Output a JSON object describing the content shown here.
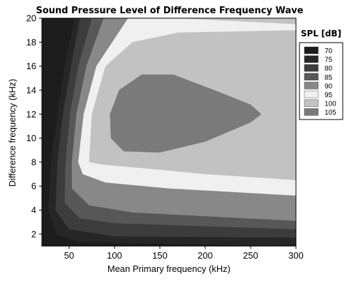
{
  "chart_data": {
    "type": "contour",
    "title": "Sound Pressure Level of Difference Frequency Wave",
    "xlabel": "Mean Primary frequency (kHz)",
    "ylabel": "Difference frequency (kHz)",
    "xlim": [
      20,
      300
    ],
    "ylim": [
      1,
      20
    ],
    "xticks": [
      50,
      100,
      150,
      200,
      250,
      300
    ],
    "yticks": [
      2,
      4,
      6,
      8,
      10,
      12,
      14,
      16,
      18,
      20
    ],
    "grid": false,
    "legend": {
      "title": "SPL [dB]",
      "placement": "right",
      "levels": [
        {
          "label": "70",
          "color": "#1c1c1c"
        },
        {
          "label": "75",
          "color": "#262626"
        },
        {
          "label": "80",
          "color": "#3c3c3c"
        },
        {
          "label": "85",
          "color": "#575757"
        },
        {
          "label": "90",
          "color": "#888888"
        },
        {
          "label": "95",
          "color": "#f0f0f0"
        },
        {
          "label": "100",
          "color": "#c2c2c2"
        },
        {
          "label": "105",
          "color": "#7a7a7a"
        }
      ]
    },
    "regions": [
      {
        "level": "70",
        "color": "#1c1c1c",
        "outline": [
          [
            20,
            1
          ],
          [
            20,
            20
          ],
          [
            50,
            20
          ],
          [
            40,
            16
          ],
          [
            30,
            12
          ],
          [
            25,
            8
          ],
          [
            23,
            4
          ],
          [
            30,
            1.5
          ],
          [
            50,
            1
          ]
        ]
      },
      {
        "level": "75",
        "color": "#262626",
        "outline": [
          [
            25,
            20
          ],
          [
            56,
            20
          ],
          [
            45,
            16
          ],
          [
            37,
            12
          ],
          [
            30,
            8
          ],
          [
            27,
            4
          ],
          [
            36,
            2
          ],
          [
            60,
            1.3
          ],
          [
            300,
            1
          ]
        ]
      },
      {
        "level": "80",
        "color": "#3c3c3c",
        "outline": [
          [
            40,
            20
          ],
          [
            62,
            20
          ],
          [
            52,
            16
          ],
          [
            43,
            12
          ],
          [
            37,
            8
          ],
          [
            35,
            4
          ],
          [
            50,
            2.4
          ],
          [
            100,
            1.8
          ],
          [
            300,
            1.7
          ]
        ]
      },
      {
        "level": "85",
        "color": "#575757",
        "outline": [
          [
            58,
            20
          ],
          [
            75,
            20
          ],
          [
            60,
            16
          ],
          [
            51,
            12
          ],
          [
            46,
            8
          ],
          [
            45,
            4.6
          ],
          [
            62,
            3.3
          ],
          [
            100,
            2.9
          ],
          [
            300,
            2.4
          ]
        ]
      },
      {
        "level": "90",
        "color": "#888888",
        "outline": [
          [
            67,
            20
          ],
          [
            88,
            20
          ],
          [
            69,
            16
          ],
          [
            58,
            12
          ],
          [
            53,
            8
          ],
          [
            53,
            5.8
          ],
          [
            72,
            4.4
          ],
          [
            120,
            3.8
          ],
          [
            300,
            3.1
          ]
        ]
      },
      {
        "level": "95",
        "color": "#f0f0f0",
        "outline": [
          [
            78,
            20
          ],
          [
            115,
            20
          ],
          [
            80,
            16
          ],
          [
            66,
            12
          ],
          [
            60,
            8
          ],
          [
            65,
            7
          ],
          [
            90,
            6.3
          ],
          [
            160,
            5.8
          ],
          [
            300,
            5.2
          ]
        ]
      },
      {
        "level": "100",
        "color": "#c2c2c2",
        "outline": [
          [
            110,
            20
          ],
          [
            170,
            20
          ],
          [
            300,
            19.5
          ],
          [
            300,
            19
          ],
          [
            170,
            18.8
          ],
          [
            120,
            18
          ],
          [
            90,
            16
          ],
          [
            75,
            12
          ],
          [
            72,
            8
          ],
          [
            85,
            7.8
          ],
          [
            130,
            7.5
          ],
          [
            200,
            7
          ],
          [
            300,
            6.5
          ]
        ]
      },
      {
        "level": "105",
        "color": "#7a7a7a",
        "outline": [
          [
            95,
            12
          ],
          [
            105,
            14
          ],
          [
            130,
            15.3
          ],
          [
            165,
            15.3
          ],
          [
            210,
            14
          ],
          [
            250,
            12.8
          ],
          [
            262,
            12
          ],
          [
            250,
            11.3
          ],
          [
            200,
            9.7
          ],
          [
            150,
            8.8
          ],
          [
            110,
            8.9
          ],
          [
            96,
            10
          ]
        ]
      }
    ]
  }
}
